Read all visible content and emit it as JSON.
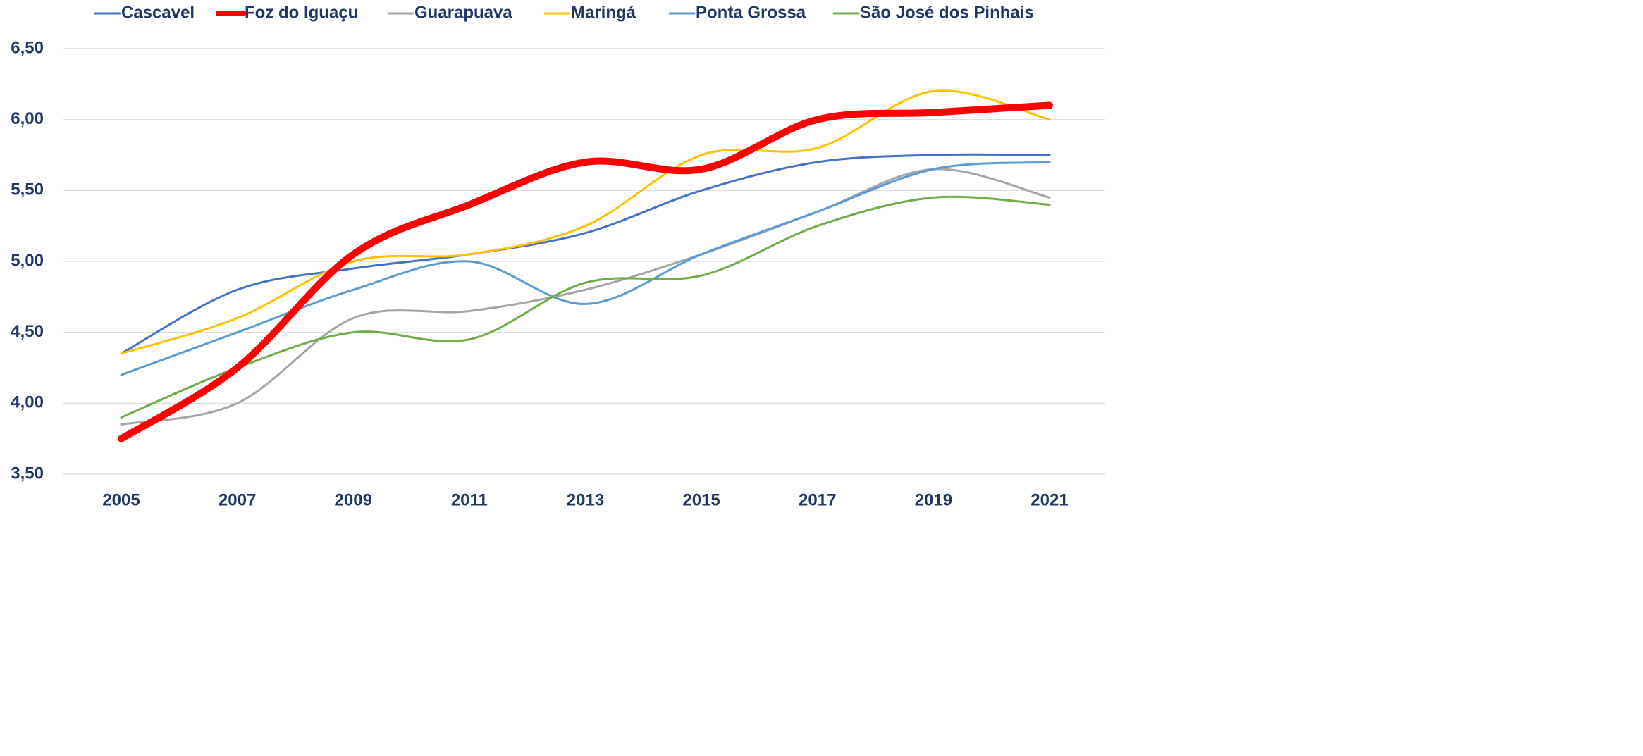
{
  "chart_data": {
    "type": "line",
    "categories": [
      "2005",
      "2007",
      "2009",
      "2011",
      "2013",
      "2015",
      "2017",
      "2019",
      "2021"
    ],
    "series": [
      {
        "name": "Cascavel",
        "color": "#4472c4",
        "line_width": 3,
        "values": [
          4.35,
          4.8,
          4.95,
          5.05,
          5.2,
          5.5,
          5.7,
          5.75,
          5.75
        ]
      },
      {
        "name": "Foz do Iguaçu",
        "color": "#ff0000",
        "line_width": 10,
        "values": [
          3.75,
          4.25,
          5.05,
          5.4,
          5.7,
          5.65,
          6.0,
          6.05,
          6.1
        ]
      },
      {
        "name": "Guarapuava",
        "color": "#a5a5a5",
        "line_width": 3,
        "values": [
          3.85,
          4.0,
          4.6,
          4.65,
          4.8,
          5.05,
          5.35,
          5.65,
          5.45
        ]
      },
      {
        "name": "Maringá",
        "color": "#ffc000",
        "line_width": 3,
        "values": [
          4.35,
          4.6,
          5.0,
          5.05,
          5.25,
          5.75,
          5.8,
          6.2,
          6.0
        ]
      },
      {
        "name": "Ponta Grossa",
        "color": "#5b9bd5",
        "line_width": 3,
        "values": [
          4.2,
          4.5,
          4.8,
          5.0,
          4.7,
          5.05,
          5.35,
          5.65,
          5.7
        ]
      },
      {
        "name": "São José dos Pinhais",
        "color": "#70ad47",
        "line_width": 3,
        "values": [
          3.9,
          4.25,
          4.5,
          4.45,
          4.85,
          4.9,
          5.25,
          5.45,
          5.4
        ]
      }
    ],
    "ylim": [
      3.5,
      6.5
    ],
    "yticks": [
      {
        "value": 3.5,
        "label": "3,50"
      },
      {
        "value": 4,
        "label": "4,00"
      },
      {
        "value": 4.5,
        "label": "4,50"
      },
      {
        "value": 5,
        "label": "5,00"
      },
      {
        "value": 5.5,
        "label": "5,50"
      },
      {
        "value": 6,
        "label": "6,00"
      },
      {
        "value": 6.5,
        "label": "6,50"
      }
    ],
    "grid": true,
    "smooth": true,
    "legend": "top"
  }
}
